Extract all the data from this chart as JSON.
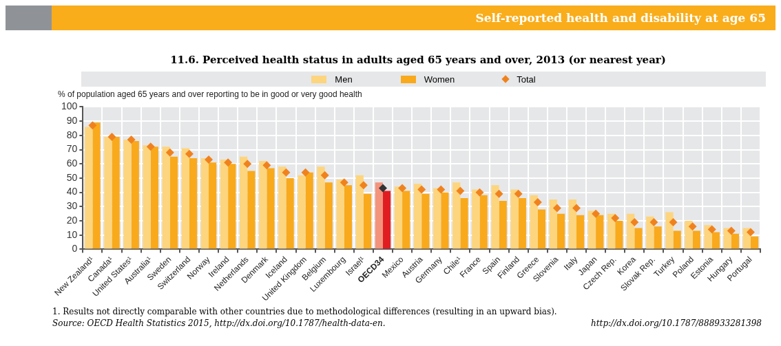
{
  "chart_data": {
    "type": "bar",
    "title": "11.6.  Perceived health status in adults aged 65 years and over, 2013 (or nearest year)",
    "subtitle": "Self-reported health and disability at age 65",
    "ylabel": "% of population aged 65 years and over reporting to be in good or very good health",
    "categories": [
      "New Zealand¹",
      "Canada¹",
      "United States¹",
      "Australia¹",
      "Sweden",
      "Switzerland",
      "Norway",
      "Ireland",
      "Netherlands",
      "Denmark",
      "Iceland",
      "United Kingdom",
      "Belgium",
      "Luxembourg",
      "Israel¹",
      "OECD34",
      "Mexico",
      "Austria",
      "Germany",
      "Chile¹",
      "France",
      "Spain",
      "Finland",
      "Greece",
      "Slovenia",
      "Italy",
      "Japan",
      "Czech Rep.",
      "Korea",
      "Slovak Rep.",
      "Turkey",
      "Poland",
      "Estonia",
      "Hungary",
      "Portugal"
    ],
    "series": [
      {
        "name": "Men",
        "color": "#fdd57e",
        "colors": [
          "#fdd57e",
          "#fdd57e",
          "#fdd57e",
          "#fdd57e",
          "#fdd57e",
          "#fdd57e",
          "#fdd57e",
          "#fdd57e",
          "#fdd57e",
          "#fdd57e",
          "#fdd57e",
          "#fdd57e",
          "#fdd57e",
          "#fdd57e",
          "#fdd57e",
          "#f4937c",
          "#fdd57e",
          "#fdd57e",
          "#fdd57e",
          "#fdd57e",
          "#fdd57e",
          "#fdd57e",
          "#fdd57e",
          "#fdd57e",
          "#fdd57e",
          "#fdd57e",
          "#fdd57e",
          "#fdd57e",
          "#fdd57e",
          "#fdd57e",
          "#fdd57e",
          "#fdd57e",
          "#fdd57e",
          "#fdd57e",
          "#fdd57e"
        ],
        "values": [
          86,
          79,
          77,
          73,
          72,
          71,
          64,
          63,
          65,
          62,
          58,
          52,
          58,
          49,
          52,
          47,
          44,
          46,
          43,
          47,
          42,
          45,
          42,
          38,
          35,
          35,
          27,
          25,
          25,
          23,
          26,
          20,
          17,
          15,
          15
        ]
      },
      {
        "name": "Women",
        "color": "#f9a91c",
        "colors": [
          "#f9a91c",
          "#f9a91c",
          "#f9a91c",
          "#f9a91c",
          "#f9a91c",
          "#f9a91c",
          "#f9a91c",
          "#f9a91c",
          "#f9a91c",
          "#f9a91c",
          "#f9a91c",
          "#f9a91c",
          "#f9a91c",
          "#f9a91c",
          "#f9a91c",
          "#e01e22",
          "#f9a91c",
          "#f9a91c",
          "#f9a91c",
          "#f9a91c",
          "#f9a91c",
          "#f9a91c",
          "#f9a91c",
          "#f9a91c",
          "#f9a91c",
          "#f9a91c",
          "#f9a91c",
          "#f9a91c",
          "#f9a91c",
          "#f9a91c",
          "#f9a91c",
          "#f9a91c",
          "#f9a91c",
          "#f9a91c",
          "#f9a91c"
        ],
        "values": [
          89,
          79,
          76,
          72,
          65,
          64,
          61,
          60,
          55,
          57,
          50,
          54,
          47,
          45,
          39,
          41,
          41,
          39,
          40,
          36,
          38,
          34,
          36,
          28,
          25,
          24,
          24,
          20,
          15,
          16,
          13,
          13,
          12,
          11,
          9
        ]
      },
      {
        "name": "Total",
        "type": "scatter",
        "marker": "diamond",
        "color": "#f0821e",
        "colors": [
          "#f0821e",
          "#f0821e",
          "#f0821e",
          "#f0821e",
          "#f0821e",
          "#f0821e",
          "#f0821e",
          "#f0821e",
          "#f0821e",
          "#f0821e",
          "#f0821e",
          "#f0821e",
          "#f0821e",
          "#f0821e",
          "#f0821e",
          "#333333",
          "#f0821e",
          "#f0821e",
          "#f0821e",
          "#f0821e",
          "#f0821e",
          "#f0821e",
          "#f0821e",
          "#f0821e",
          "#f0821e",
          "#f0821e",
          "#f0821e",
          "#f0821e",
          "#f0821e",
          "#f0821e",
          "#f0821e",
          "#f0821e",
          "#f0821e",
          "#f0821e",
          "#f0821e"
        ],
        "x": [
          "New Zealand¹",
          "Canada¹",
          "United States¹",
          "Australia¹",
          "Sweden",
          "Switzerland",
          "Norway",
          "Ireland",
          "Netherlands",
          "Denmark",
          "Iceland",
          "United Kingdom",
          "Belgium",
          "Luxembourg",
          "Israel¹",
          "OECD34",
          "Mexico",
          "Austria",
          "Germany",
          "Chile¹",
          "France",
          "Spain",
          "Finland",
          "Greece",
          "Slovenia",
          "Italy",
          "Japan",
          "Czech Rep.",
          "Korea",
          "Slovak Rep.",
          "Turkey",
          "Poland",
          "Estonia",
          "Hungary",
          "Portugal"
        ],
        "values": [
          87,
          79,
          77,
          72,
          68,
          67,
          63,
          61,
          60,
          59,
          54,
          54,
          52,
          47,
          45,
          43,
          43,
          42,
          42,
          41,
          40,
          39,
          39,
          33,
          29,
          29,
          25,
          22,
          19,
          19,
          19,
          16,
          14,
          13,
          12
        ]
      }
    ],
    "ylim": [
      0,
      100
    ],
    "yticks": [
      0,
      10,
      20,
      30,
      40,
      50,
      60,
      70,
      80,
      90,
      100
    ],
    "grid": true,
    "legend": "top",
    "annotations": [
      "1.  Results not directly comparable with other countries due to methodological differences (resulting in an upward bias).",
      "Source:  OECD Health Statistics 2015, http://dx.doi.org/10.1787/health-data-en.",
      "http://dx.doi.org/10.1787/888933281398"
    ]
  }
}
